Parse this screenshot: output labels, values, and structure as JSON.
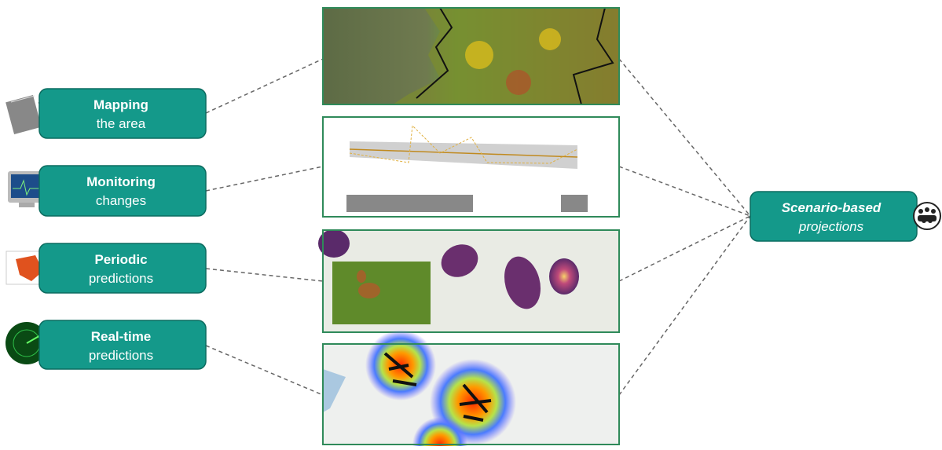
{
  "nodes": [
    {
      "title": "Mapping",
      "subtitle": "the area"
    },
    {
      "title": "Monitoring",
      "subtitle": "changes"
    },
    {
      "title": "Periodic",
      "subtitle": "predictions"
    },
    {
      "title": "Real-time",
      "subtitle": "predictions"
    }
  ],
  "target": {
    "title": "Scenario-based",
    "subtitle": "projections"
  }
}
